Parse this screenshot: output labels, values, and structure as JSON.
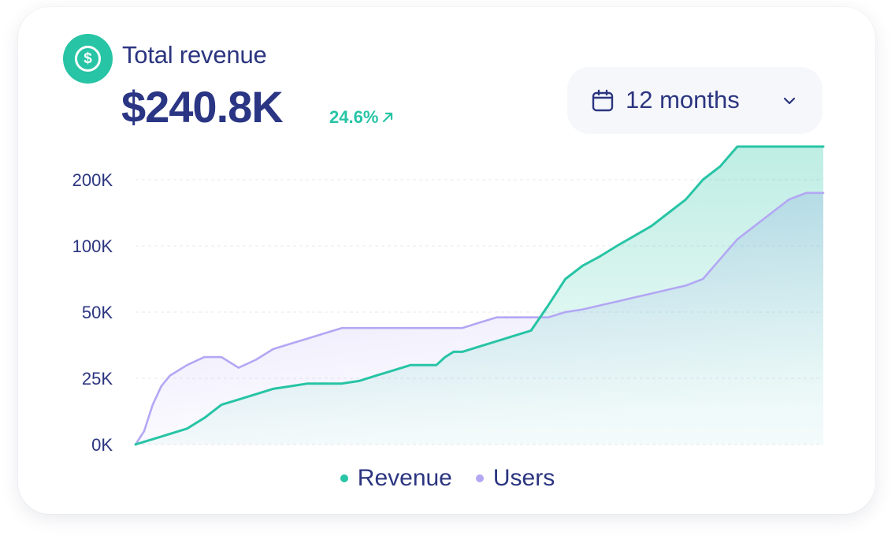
{
  "header": {
    "icon": "dollar-icon",
    "title": "Total revenue",
    "value": "$240.8K",
    "change": "24.6%",
    "change_icon": "arrow-up-right-icon"
  },
  "period_select": {
    "icon": "calendar-icon",
    "selected": "12 months",
    "chevron_icon": "chevron-down-icon"
  },
  "colors": {
    "revenue": "#27c4a5",
    "users": "#b3a7f4",
    "text": "#2b3580"
  },
  "chart_data": {
    "type": "area",
    "title": "",
    "xlabel": "",
    "ylabel": "",
    "grid": true,
    "legend": "bottom-center",
    "y_ticks": [
      "0K",
      "25K",
      "50K",
      "100K",
      "200K"
    ],
    "x": [
      0,
      0.5,
      1,
      1.5,
      2,
      3,
      4,
      5,
      6,
      7,
      8,
      9,
      10,
      11,
      12,
      13,
      14,
      15,
      16,
      17,
      17.5,
      18,
      18.5,
      19,
      20,
      21,
      22,
      23,
      24,
      25,
      26,
      27,
      28,
      29,
      30,
      31,
      32,
      33,
      34,
      35,
      36,
      37,
      37.5,
      38,
      39,
      40
    ],
    "series": [
      {
        "name": "Revenue",
        "values": [
          0,
          1,
          2,
          3,
          4,
          6,
          10,
          15,
          17,
          19,
          21,
          22,
          23,
          23,
          23,
          24,
          26,
          28,
          30,
          30,
          30,
          33,
          35,
          35,
          37,
          39,
          41,
          43,
          55,
          75,
          85,
          92,
          100,
          115,
          130,
          150,
          170,
          200,
          220,
          250,
          250,
          250,
          250,
          250,
          250,
          250
        ]
      },
      {
        "name": "Users",
        "values": [
          0,
          5,
          15,
          22,
          26,
          30,
          33,
          33,
          29,
          32,
          36,
          38,
          40,
          42,
          44,
          44,
          44,
          44,
          44,
          44,
          44,
          44,
          44,
          44,
          46,
          48,
          48,
          48,
          48,
          50,
          52,
          55,
          58,
          61,
          64,
          67,
          70,
          75,
          90,
          110,
          130,
          150,
          160,
          170,
          180,
          180
        ]
      }
    ]
  },
  "legend_labels": {
    "revenue": "Revenue",
    "users": "Users"
  }
}
